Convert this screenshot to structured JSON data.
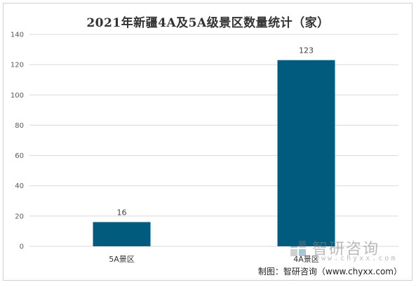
{
  "chart_data": {
    "type": "bar",
    "title": "2021年新疆4A及5A级景区数量统计（家）",
    "categories": [
      "5A景区",
      "4A景区"
    ],
    "values": [
      16,
      123
    ],
    "data_labels": [
      "16",
      "123"
    ],
    "ylim": [
      0,
      140
    ],
    "yticks": [
      0,
      20,
      40,
      60,
      80,
      100,
      120,
      140
    ],
    "ytick_labels": [
      "0",
      "20",
      "40",
      "60",
      "80",
      "100",
      "120",
      "140"
    ],
    "xlabel": "",
    "ylabel": "",
    "grid": true,
    "legend": "none",
    "bar_color": "#005b7f",
    "grid_color": "#d9d9d9"
  },
  "watermark": {
    "name": "智研咨询",
    "url": "www.chyxx.com",
    "logo_icon": "chyxx-logo-icon"
  },
  "credit": "制图：智研咨询（www.chyxx.com）"
}
